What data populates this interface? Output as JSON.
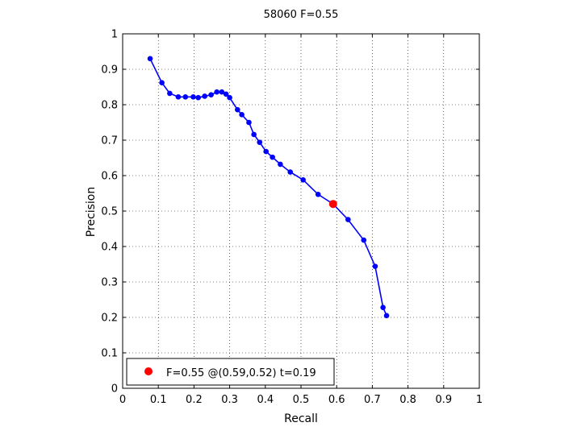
{
  "chart_data": {
    "type": "line",
    "title": "58060 F=0.55",
    "xlabel": "Recall",
    "ylabel": "Precision",
    "xlim": [
      0,
      1
    ],
    "ylim": [
      0,
      1
    ],
    "grid": true,
    "xticks": [
      "0",
      "0.1",
      "0.2",
      "0.3",
      "0.4",
      "0.5",
      "0.6",
      "0.7",
      "0.8",
      "0.9",
      "1"
    ],
    "yticks": [
      "0",
      "0.1",
      "0.2",
      "0.3",
      "0.4",
      "0.5",
      "0.6",
      "0.7",
      "0.8",
      "0.9",
      "1"
    ],
    "series": [
      {
        "color": "#0000ff",
        "points": [
          [
            0.077,
            0.93
          ],
          [
            0.11,
            0.862
          ],
          [
            0.132,
            0.832
          ],
          [
            0.156,
            0.822
          ],
          [
            0.176,
            0.822
          ],
          [
            0.198,
            0.822
          ],
          [
            0.212,
            0.82
          ],
          [
            0.23,
            0.824
          ],
          [
            0.248,
            0.828
          ],
          [
            0.264,
            0.836
          ],
          [
            0.278,
            0.836
          ],
          [
            0.29,
            0.83
          ],
          [
            0.3,
            0.82
          ],
          [
            0.322,
            0.786
          ],
          [
            0.334,
            0.772
          ],
          [
            0.354,
            0.75
          ],
          [
            0.368,
            0.716
          ],
          [
            0.384,
            0.694
          ],
          [
            0.402,
            0.668
          ],
          [
            0.42,
            0.652
          ],
          [
            0.442,
            0.632
          ],
          [
            0.47,
            0.61
          ],
          [
            0.506,
            0.588
          ],
          [
            0.548,
            0.547
          ],
          [
            0.59,
            0.52
          ],
          [
            0.632,
            0.476
          ],
          [
            0.676,
            0.418
          ],
          [
            0.708,
            0.344
          ],
          [
            0.73,
            0.228
          ],
          [
            0.74,
            0.205
          ]
        ]
      }
    ],
    "best_point": {
      "recall": 0.59,
      "precision": 0.52,
      "color": "#ff0000"
    },
    "legend": {
      "position": "bottom-left",
      "label": "F=0.55 @(0.59,0.52) t=0.19"
    }
  }
}
